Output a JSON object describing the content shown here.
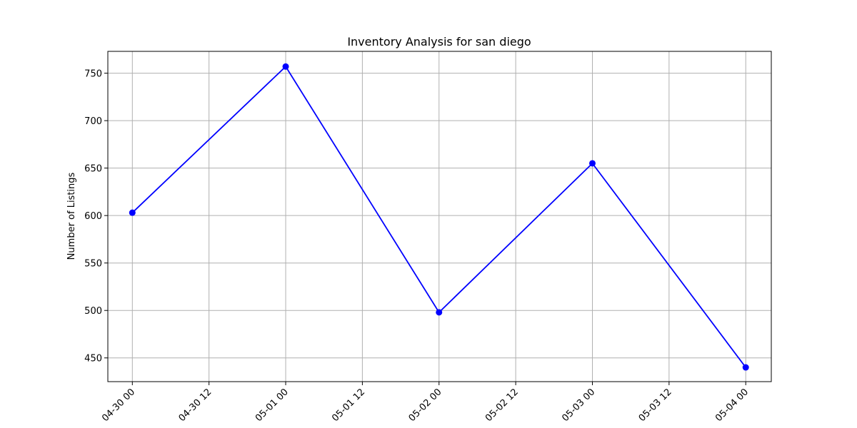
{
  "chart_data": {
    "type": "line",
    "title": "Inventory Analysis for san diego",
    "xlabel": "",
    "ylabel": "Number of Listings",
    "x_ticks": [
      "04-30 00",
      "04-30 12",
      "05-01 00",
      "05-01 12",
      "05-02 00",
      "05-02 12",
      "05-03 00",
      "05-03 12",
      "05-04 00"
    ],
    "y_ticks": [
      450,
      500,
      550,
      600,
      650,
      700,
      750
    ],
    "ylim": [
      425,
      773
    ],
    "xlim": [
      "04-29 20:10",
      "05-04 04:00"
    ],
    "grid": true,
    "series": [
      {
        "color": "#0000ff",
        "marker": "circle",
        "x": [
          "04-30 00",
          "05-01 00",
          "05-02 00",
          "05-03 00",
          "05-04 00"
        ],
        "values": [
          603,
          757,
          498,
          655,
          440
        ]
      }
    ]
  }
}
